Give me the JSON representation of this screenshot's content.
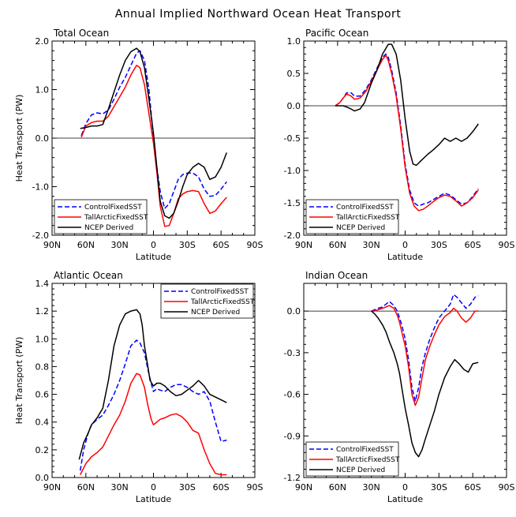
{
  "figure_title": "Annual Implied Northward Ocean Heat Transport",
  "colors": {
    "ControlFixedSST": "#0000ff",
    "TallArcticFixedSST": "#ff0000",
    "NCEP Derived": "#000000"
  },
  "chart_data": [
    {
      "type": "line",
      "title": "Total Ocean",
      "xlabel": "Latitude",
      "ylabel": "Heat Transport (PW)",
      "xlim": [
        90,
        -90
      ],
      "ylim": [
        -2.0,
        2.0
      ],
      "xticks": [
        90,
        60,
        30,
        0,
        -30,
        -60,
        -90
      ],
      "xtick_labels": [
        "90N",
        "60N",
        "30N",
        "0",
        "30S",
        "60S",
        "90S"
      ],
      "yticks": [
        -2.0,
        -1.0,
        0.0,
        1.0,
        2.0
      ],
      "ytick_labels": [
        "-2.0",
        "-1.0",
        "0.0",
        "1.0",
        "2.0"
      ],
      "zero_line": true,
      "legend_position": "bottom-left",
      "series": [
        {
          "name": "ControlFixedSST",
          "style": "dashed",
          "x": [
            64,
            60,
            55,
            50,
            45,
            40,
            35,
            30,
            25,
            20,
            15,
            12,
            8,
            4,
            0,
            -3,
            -6,
            -10,
            -14,
            -18,
            -22,
            -26,
            -30,
            -35,
            -40,
            -45,
            -50,
            -55,
            -60,
            -65
          ],
          "y": [
            0.05,
            0.3,
            0.48,
            0.52,
            0.5,
            0.58,
            0.8,
            1.05,
            1.25,
            1.5,
            1.75,
            1.8,
            1.6,
            1.0,
            0.0,
            -0.6,
            -1.1,
            -1.45,
            -1.35,
            -1.1,
            -0.85,
            -0.75,
            -0.72,
            -0.72,
            -0.8,
            -1.05,
            -1.2,
            -1.18,
            -1.05,
            -0.9
          ]
        },
        {
          "name": "TallArcticFixedSST",
          "style": "solid",
          "x": [
            64,
            60,
            55,
            50,
            45,
            40,
            35,
            30,
            25,
            20,
            15,
            12,
            8,
            4,
            0,
            -3,
            -6,
            -10,
            -14,
            -18,
            -22,
            -26,
            -30,
            -35,
            -40,
            -45,
            -50,
            -55,
            -60,
            -65
          ],
          "y": [
            0.02,
            0.25,
            0.32,
            0.35,
            0.35,
            0.45,
            0.65,
            0.85,
            1.05,
            1.3,
            1.5,
            1.45,
            1.1,
            0.5,
            -0.1,
            -0.7,
            -1.4,
            -1.82,
            -1.8,
            -1.55,
            -1.25,
            -1.15,
            -1.1,
            -1.08,
            -1.1,
            -1.35,
            -1.55,
            -1.5,
            -1.35,
            -1.22
          ]
        },
        {
          "name": "NCEP Derived",
          "style": "solid",
          "x": [
            65,
            60,
            55,
            50,
            45,
            40,
            35,
            30,
            25,
            20,
            15,
            12,
            8,
            4,
            0,
            -3,
            -6,
            -10,
            -14,
            -18,
            -22,
            -26,
            -30,
            -35,
            -40,
            -45,
            -50,
            -55,
            -60,
            -65
          ],
          "y": [
            0.2,
            0.22,
            0.25,
            0.25,
            0.28,
            0.6,
            0.95,
            1.3,
            1.6,
            1.78,
            1.85,
            1.78,
            1.45,
            0.8,
            0.1,
            -0.6,
            -1.3,
            -1.6,
            -1.65,
            -1.55,
            -1.3,
            -1.0,
            -0.75,
            -0.6,
            -0.52,
            -0.6,
            -0.85,
            -0.8,
            -0.6,
            -0.3
          ]
        }
      ]
    },
    {
      "type": "line",
      "title": "Pacific Ocean",
      "xlabel": "Latitude",
      "ylabel": "",
      "xlim": [
        90,
        -90
      ],
      "ylim": [
        -2.0,
        1.0
      ],
      "xticks": [
        90,
        60,
        30,
        0,
        -30,
        -60,
        -90
      ],
      "xtick_labels": [
        "90N",
        "60N",
        "30N",
        "0",
        "30S",
        "60S",
        "90S"
      ],
      "yticks": [
        -2.0,
        -1.5,
        -1.0,
        -0.5,
        0.0,
        0.5,
        1.0
      ],
      "ytick_labels": [
        "-2.0",
        "-1.5",
        "-1.0",
        "-0.5",
        "0.0",
        "0.5",
        "1.0"
      ],
      "zero_line": true,
      "legend_position": "bottom-left",
      "series": [
        {
          "name": "ControlFixedSST",
          "style": "dashed",
          "x": [
            62,
            58,
            55,
            52,
            48,
            45,
            40,
            35,
            30,
            25,
            20,
            17,
            15,
            12,
            8,
            4,
            0,
            -4,
            -8,
            -12,
            -16,
            -20,
            -25,
            -30,
            -35,
            -40,
            -45,
            -50,
            -55,
            -60,
            -65
          ],
          "y": [
            0.0,
            0.05,
            0.12,
            0.2,
            0.2,
            0.15,
            0.15,
            0.25,
            0.4,
            0.58,
            0.75,
            0.8,
            0.75,
            0.55,
            0.2,
            -0.3,
            -0.9,
            -1.3,
            -1.5,
            -1.55,
            -1.52,
            -1.5,
            -1.45,
            -1.4,
            -1.35,
            -1.38,
            -1.45,
            -1.52,
            -1.5,
            -1.4,
            -1.28
          ]
        },
        {
          "name": "TallArcticFixedSST",
          "style": "solid",
          "x": [
            62,
            58,
            55,
            52,
            48,
            45,
            40,
            35,
            30,
            25,
            20,
            17,
            15,
            12,
            8,
            4,
            0,
            -4,
            -8,
            -12,
            -16,
            -20,
            -25,
            -30,
            -35,
            -40,
            -45,
            -50,
            -55,
            -60,
            -65
          ],
          "y": [
            0.0,
            0.05,
            0.12,
            0.18,
            0.15,
            0.1,
            0.12,
            0.22,
            0.38,
            0.55,
            0.72,
            0.78,
            0.7,
            0.5,
            0.15,
            -0.35,
            -0.95,
            -1.35,
            -1.55,
            -1.62,
            -1.6,
            -1.55,
            -1.48,
            -1.42,
            -1.38,
            -1.4,
            -1.47,
            -1.55,
            -1.5,
            -1.42,
            -1.3
          ]
        },
        {
          "name": "NCEP Derived",
          "style": "solid",
          "x": [
            62,
            58,
            55,
            52,
            48,
            45,
            40,
            36,
            33,
            30,
            25,
            20,
            15,
            12,
            8,
            4,
            0,
            -4,
            -7,
            -10,
            -14,
            -20,
            -25,
            -30,
            -35,
            -40,
            -45,
            -50,
            -55,
            -60,
            -65
          ],
          "y": [
            0.0,
            0.0,
            0.0,
            -0.02,
            -0.05,
            -0.08,
            -0.05,
            0.05,
            0.2,
            0.35,
            0.55,
            0.8,
            0.95,
            0.95,
            0.8,
            0.4,
            -0.2,
            -0.7,
            -0.9,
            -0.92,
            -0.85,
            -0.75,
            -0.68,
            -0.6,
            -0.5,
            -0.55,
            -0.5,
            -0.55,
            -0.5,
            -0.4,
            -0.28
          ]
        }
      ]
    },
    {
      "type": "line",
      "title": "Atlantic Ocean",
      "xlabel": "Latitude",
      "ylabel": "Heat Transport (PW)",
      "xlim": [
        90,
        -90
      ],
      "ylim": [
        0.0,
        1.4
      ],
      "xticks": [
        90,
        60,
        30,
        0,
        -30,
        -60,
        -90
      ],
      "xtick_labels": [
        "90N",
        "60N",
        "30N",
        "0",
        "30S",
        "60S",
        "90S"
      ],
      "yticks": [
        0.0,
        0.2,
        0.4,
        0.6,
        0.8,
        1.0,
        1.2,
        1.4
      ],
      "ytick_labels": [
        "0.0",
        "0.2",
        "0.4",
        "0.6",
        "0.8",
        "1.0",
        "1.2",
        "1.4"
      ],
      "zero_line": false,
      "legend_position": "top-right",
      "series": [
        {
          "name": "ControlFixedSST",
          "style": "dashed",
          "x": [
            65,
            62,
            58,
            55,
            50,
            45,
            40,
            35,
            30,
            25,
            20,
            15,
            12,
            8,
            5,
            2,
            0,
            -3,
            -6,
            -10,
            -15,
            -20,
            -25,
            -30,
            -35,
            -40,
            -45,
            -50,
            -55,
            -60,
            -65
          ],
          "y": [
            0.05,
            0.2,
            0.32,
            0.38,
            0.42,
            0.45,
            0.52,
            0.6,
            0.7,
            0.82,
            0.95,
            0.99,
            0.97,
            0.9,
            0.78,
            0.68,
            0.62,
            0.64,
            0.63,
            0.62,
            0.65,
            0.67,
            0.67,
            0.65,
            0.62,
            0.6,
            0.62,
            0.55,
            0.4,
            0.26,
            0.27
          ]
        },
        {
          "name": "TallArcticFixedSST",
          "style": "solid",
          "x": [
            65,
            60,
            55,
            50,
            45,
            40,
            35,
            30,
            25,
            20,
            15,
            12,
            8,
            5,
            2,
            0,
            -3,
            -6,
            -10,
            -15,
            -20,
            -25,
            -30,
            -35,
            -40,
            -45,
            -50,
            -55,
            -60,
            -65
          ],
          "y": [
            0.02,
            0.1,
            0.15,
            0.18,
            0.22,
            0.3,
            0.38,
            0.45,
            0.55,
            0.68,
            0.75,
            0.74,
            0.65,
            0.52,
            0.42,
            0.38,
            0.4,
            0.42,
            0.43,
            0.45,
            0.46,
            0.44,
            0.4,
            0.34,
            0.32,
            0.2,
            0.1,
            0.03,
            0.02,
            0.02
          ]
        },
        {
          "name": "NCEP Derived",
          "style": "solid",
          "x": [
            66,
            62,
            58,
            55,
            50,
            45,
            40,
            35,
            30,
            25,
            20,
            15,
            12,
            10,
            8,
            5,
            3,
            0,
            -3,
            -6,
            -10,
            -15,
            -20,
            -25,
            -30,
            -35,
            -40,
            -45,
            -50,
            -55,
            -60,
            -65
          ],
          "y": [
            0.13,
            0.25,
            0.32,
            0.38,
            0.43,
            0.5,
            0.7,
            0.95,
            1.1,
            1.18,
            1.2,
            1.21,
            1.18,
            1.1,
            0.95,
            0.8,
            0.7,
            0.66,
            0.68,
            0.68,
            0.66,
            0.62,
            0.59,
            0.6,
            0.63,
            0.66,
            0.7,
            0.66,
            0.6,
            0.58,
            0.56,
            0.54
          ]
        }
      ]
    },
    {
      "type": "line",
      "title": "Indian Ocean",
      "xlabel": "Latitude",
      "ylabel": "",
      "xlim": [
        90,
        -90
      ],
      "ylim": [
        -1.2,
        0.2
      ],
      "xticks": [
        90,
        60,
        30,
        0,
        -30,
        -60,
        -90
      ],
      "xtick_labels": [
        "90N",
        "60N",
        "30N",
        "0",
        "30S",
        "60S",
        "90S"
      ],
      "yticks": [
        -1.2,
        -0.9,
        -0.6,
        -0.3,
        0.0
      ],
      "ytick_labels": [
        "-1.2",
        "-0.9",
        "-0.6",
        "-0.3",
        "0.0"
      ],
      "zero_line": true,
      "legend_position": "bottom-left",
      "series": [
        {
          "name": "ControlFixedSST",
          "style": "dashed",
          "x": [
            30,
            27,
            24,
            20,
            17,
            14,
            10,
            7,
            5,
            3,
            0,
            -3,
            -6,
            -9,
            -12,
            -15,
            -18,
            -22,
            -26,
            -30,
            -35,
            -40,
            -43,
            -46,
            -50,
            -54,
            -58,
            -62,
            -65
          ],
          "y": [
            0.0,
            0.01,
            0.02,
            0.03,
            0.05,
            0.07,
            0.04,
            0.0,
            -0.05,
            -0.1,
            -0.2,
            -0.35,
            -0.55,
            -0.65,
            -0.55,
            -0.4,
            -0.3,
            -0.2,
            -0.12,
            -0.05,
            0.0,
            0.05,
            0.12,
            0.1,
            0.06,
            0.02,
            0.05,
            0.1,
            0.11
          ]
        },
        {
          "name": "TallArcticFixedSST",
          "style": "solid",
          "x": [
            30,
            27,
            24,
            20,
            17,
            14,
            10,
            7,
            5,
            3,
            0,
            -3,
            -6,
            -9,
            -12,
            -15,
            -18,
            -22,
            -26,
            -30,
            -35,
            -40,
            -43,
            -46,
            -50,
            -54,
            -58,
            -62,
            -65
          ],
          "y": [
            0.0,
            0.0,
            0.01,
            0.02,
            0.03,
            0.04,
            0.02,
            -0.03,
            -0.08,
            -0.15,
            -0.25,
            -0.4,
            -0.6,
            -0.68,
            -0.62,
            -0.48,
            -0.35,
            -0.25,
            -0.17,
            -0.1,
            -0.04,
            -0.01,
            0.02,
            0.0,
            -0.05,
            -0.08,
            -0.05,
            0.0,
            0.0
          ]
        },
        {
          "name": "NCEP Derived",
          "style": "solid",
          "x": [
            30,
            27,
            24,
            20,
            17,
            14,
            10,
            7,
            5,
            3,
            0,
            -3,
            -6,
            -9,
            -12,
            -15,
            -18,
            -22,
            -26,
            -30,
            -35,
            -40,
            -44,
            -48,
            -52,
            -56,
            -60,
            -65
          ],
          "y": [
            0.0,
            -0.02,
            -0.05,
            -0.1,
            -0.15,
            -0.22,
            -0.3,
            -0.38,
            -0.45,
            -0.55,
            -0.7,
            -0.82,
            -0.95,
            -1.02,
            -1.05,
            -1.0,
            -0.92,
            -0.82,
            -0.72,
            -0.6,
            -0.48,
            -0.4,
            -0.35,
            -0.38,
            -0.42,
            -0.44,
            -0.38,
            -0.37
          ]
        }
      ]
    }
  ]
}
